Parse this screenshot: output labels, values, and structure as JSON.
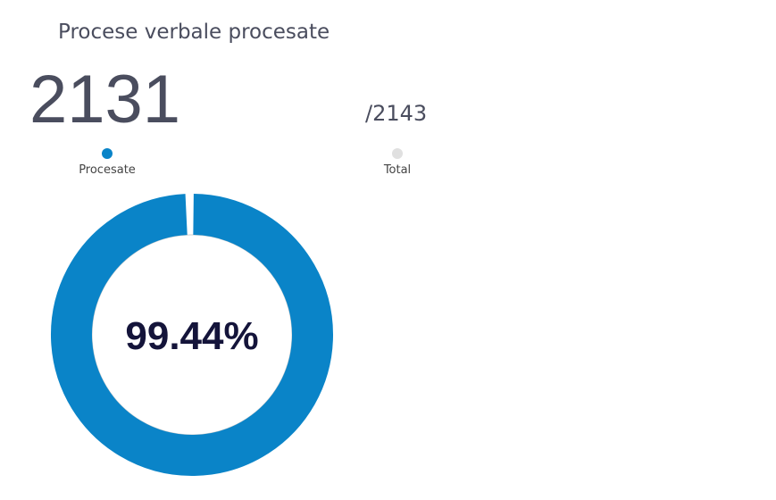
{
  "chart_data": {
    "type": "donut",
    "title": "Procese verbale procesate",
    "value": 2131,
    "value_name": "Procesate",
    "value_color": "#0a84c8",
    "total": {
      "value": 2143,
      "label": "/2143"
    },
    "total_name": "Total",
    "total_color": "#e0e0e0",
    "center_label": {
      "value": 99.44,
      "label": "99.44%"
    }
  }
}
